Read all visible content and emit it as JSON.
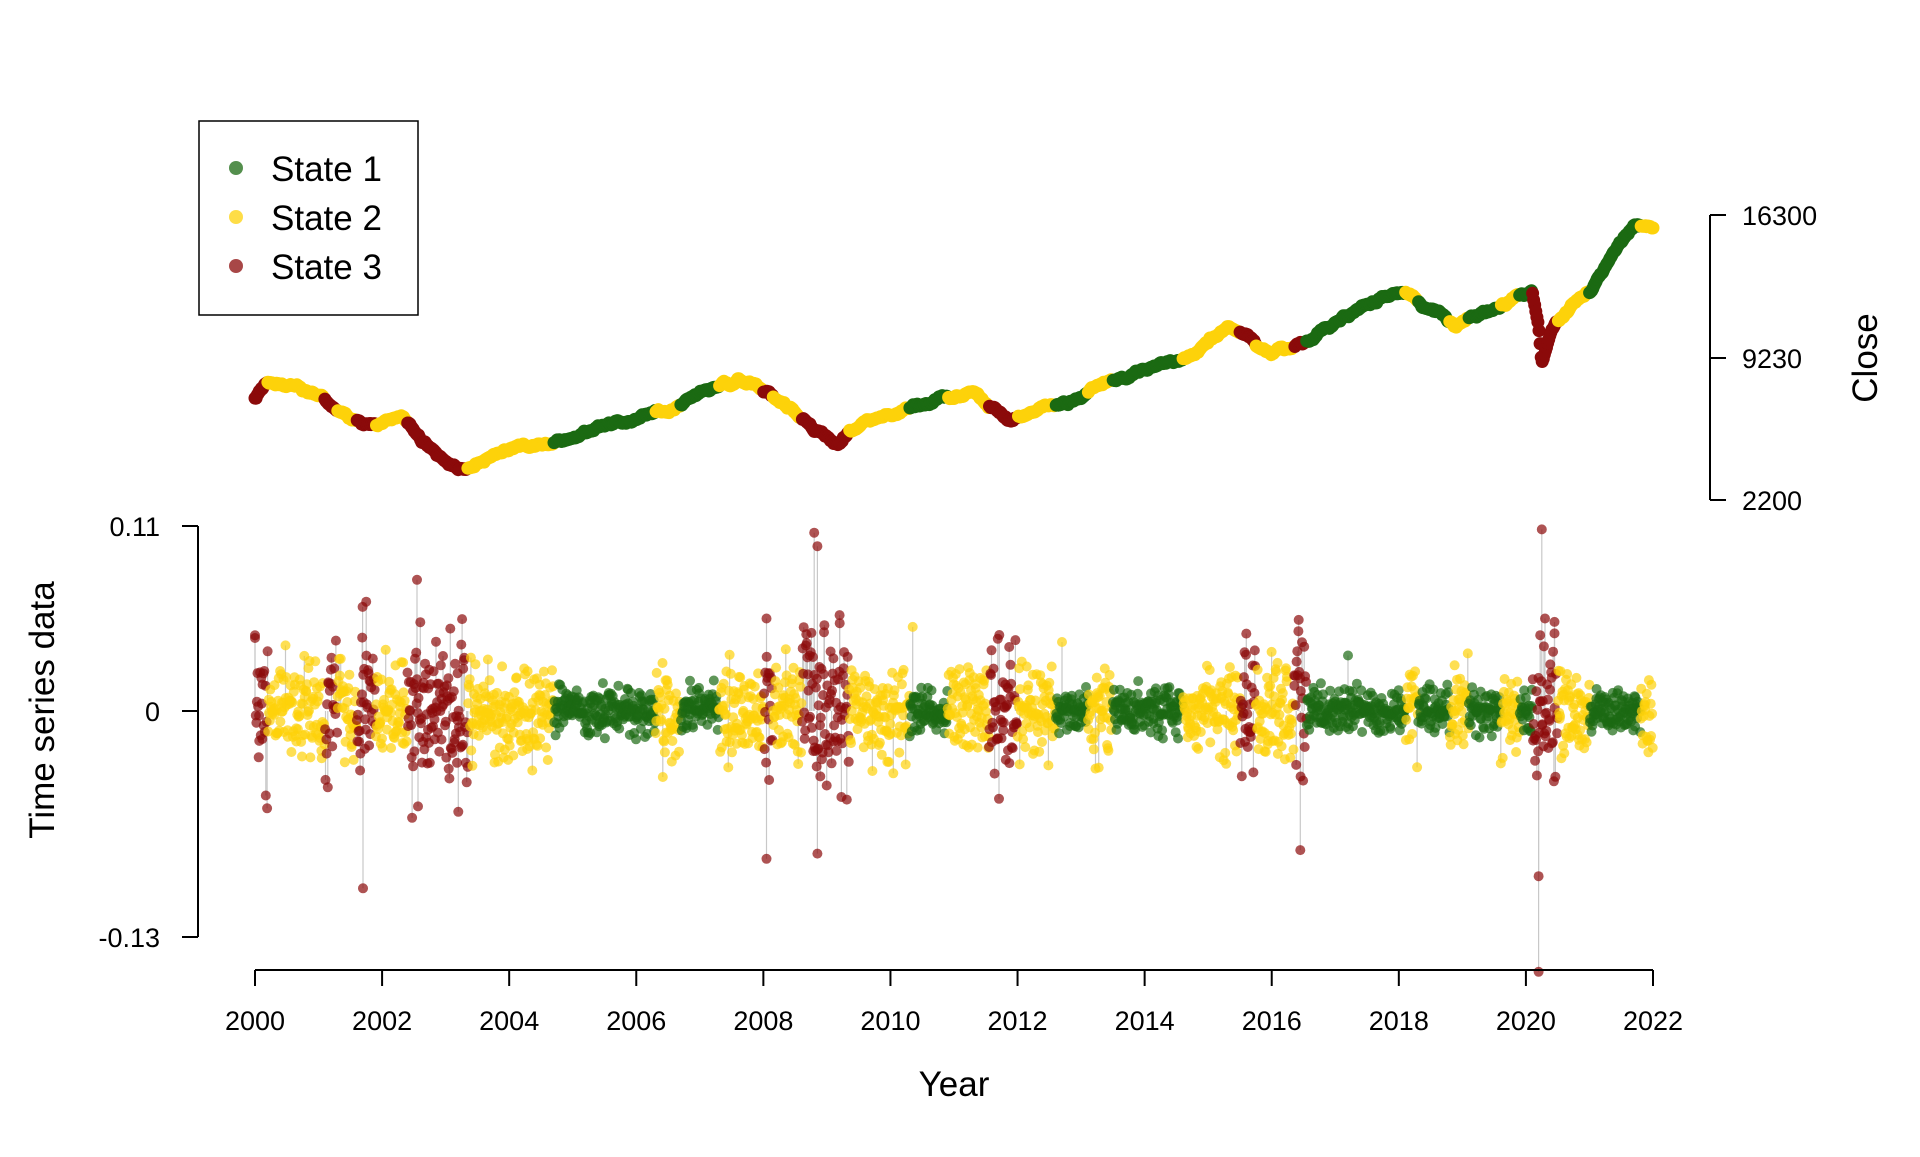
{
  "chart_data": {
    "type": "scatter",
    "title": "",
    "legend": {
      "position": "top-left",
      "entries": [
        {
          "label": "State 1",
          "color": "#1b6a12"
        },
        {
          "label": "State 2",
          "color": "#fdd20a"
        },
        {
          "label": "State 3",
          "color": "#8b0a0a"
        }
      ]
    },
    "x_axis": {
      "label": "Year",
      "range": [
        2000,
        2022
      ],
      "ticks": [
        "2000",
        "2002",
        "2004",
        "2006",
        "2008",
        "2010",
        "2012",
        "2014",
        "2016",
        "2018",
        "2020",
        "2022"
      ]
    },
    "close_axis": {
      "label": "Close",
      "position": "right",
      "range": [
        2200,
        16300
      ],
      "ticks": [
        "2200",
        "9230",
        "16300"
      ]
    },
    "returns_axis": {
      "label": "Time series data",
      "position": "left",
      "range": [
        -0.13,
        0.11
      ],
      "ticks": [
        "-0.13",
        "0",
        "0.11"
      ]
    },
    "state_segments": [
      {
        "start": 2000.0,
        "end": 2000.2,
        "state": 3
      },
      {
        "start": 2000.2,
        "end": 2001.1,
        "state": 2
      },
      {
        "start": 2001.1,
        "end": 2001.3,
        "state": 3
      },
      {
        "start": 2001.3,
        "end": 2001.6,
        "state": 2
      },
      {
        "start": 2001.6,
        "end": 2001.9,
        "state": 3
      },
      {
        "start": 2001.9,
        "end": 2002.4,
        "state": 2
      },
      {
        "start": 2002.4,
        "end": 2003.35,
        "state": 3
      },
      {
        "start": 2003.35,
        "end": 2004.7,
        "state": 2
      },
      {
        "start": 2004.7,
        "end": 2006.3,
        "state": 1
      },
      {
        "start": 2006.3,
        "end": 2006.7,
        "state": 2
      },
      {
        "start": 2006.7,
        "end": 2007.3,
        "state": 1
      },
      {
        "start": 2007.3,
        "end": 2008.0,
        "state": 2
      },
      {
        "start": 2008.0,
        "end": 2008.15,
        "state": 3
      },
      {
        "start": 2008.15,
        "end": 2008.6,
        "state": 2
      },
      {
        "start": 2008.6,
        "end": 2009.35,
        "state": 3
      },
      {
        "start": 2009.35,
        "end": 2010.3,
        "state": 2
      },
      {
        "start": 2010.3,
        "end": 2010.9,
        "state": 1
      },
      {
        "start": 2010.9,
        "end": 2011.55,
        "state": 2
      },
      {
        "start": 2011.55,
        "end": 2012.0,
        "state": 3
      },
      {
        "start": 2012.0,
        "end": 2012.6,
        "state": 2
      },
      {
        "start": 2012.6,
        "end": 2013.1,
        "state": 1
      },
      {
        "start": 2013.1,
        "end": 2013.5,
        "state": 2
      },
      {
        "start": 2013.5,
        "end": 2014.6,
        "state": 1
      },
      {
        "start": 2014.6,
        "end": 2015.5,
        "state": 2
      },
      {
        "start": 2015.5,
        "end": 2015.75,
        "state": 3
      },
      {
        "start": 2015.75,
        "end": 2016.35,
        "state": 2
      },
      {
        "start": 2016.35,
        "end": 2016.55,
        "state": 3
      },
      {
        "start": 2016.55,
        "end": 2018.1,
        "state": 1
      },
      {
        "start": 2018.1,
        "end": 2018.3,
        "state": 2
      },
      {
        "start": 2018.3,
        "end": 2018.8,
        "state": 1
      },
      {
        "start": 2018.8,
        "end": 2019.1,
        "state": 2
      },
      {
        "start": 2019.1,
        "end": 2019.6,
        "state": 1
      },
      {
        "start": 2019.6,
        "end": 2019.9,
        "state": 2
      },
      {
        "start": 2019.9,
        "end": 2020.1,
        "state": 1
      },
      {
        "start": 2020.1,
        "end": 2020.5,
        "state": 3
      },
      {
        "start": 2020.5,
        "end": 2021.0,
        "state": 2
      },
      {
        "start": 2021.0,
        "end": 2021.8,
        "state": 1
      },
      {
        "start": 2021.8,
        "end": 2022.0,
        "state": 2
      }
    ],
    "close_path": [
      [
        2000.0,
        7300
      ],
      [
        2000.2,
        8000
      ],
      [
        2000.6,
        7800
      ],
      [
        2001.0,
        7300
      ],
      [
        2001.3,
        6600
      ],
      [
        2001.7,
        5900
      ],
      [
        2002.0,
        6000
      ],
      [
        2002.3,
        6300
      ],
      [
        2002.6,
        5200
      ],
      [
        2002.9,
        4300
      ],
      [
        2003.2,
        3700
      ],
      [
        2003.5,
        4000
      ],
      [
        2004.0,
        4800
      ],
      [
        2004.7,
        4900
      ],
      [
        2005.3,
        5700
      ],
      [
        2005.8,
        6000
      ],
      [
        2006.4,
        6600
      ],
      [
        2006.9,
        7200
      ],
      [
        2007.3,
        7900
      ],
      [
        2007.6,
        8200
      ],
      [
        2007.9,
        7800
      ],
      [
        2008.3,
        7000
      ],
      [
        2008.8,
        5600
      ],
      [
        2009.2,
        5100
      ],
      [
        2009.6,
        6000
      ],
      [
        2010.3,
        6700
      ],
      [
        2010.9,
        7300
      ],
      [
        2011.3,
        7600
      ],
      [
        2011.6,
        6800
      ],
      [
        2011.9,
        6200
      ],
      [
        2012.4,
        6900
      ],
      [
        2012.8,
        7100
      ],
      [
        2013.2,
        7800
      ],
      [
        2013.8,
        8300
      ],
      [
        2014.3,
        8900
      ],
      [
        2014.8,
        9300
      ],
      [
        2015.3,
        10800
      ],
      [
        2015.7,
        10100
      ],
      [
        2016.0,
        9500
      ],
      [
        2016.5,
        9900
      ],
      [
        2017.0,
        11000
      ],
      [
        2017.5,
        11800
      ],
      [
        2017.9,
        12500
      ],
      [
        2018.2,
        12200
      ],
      [
        2018.6,
        11400
      ],
      [
        2018.9,
        10800
      ],
      [
        2019.2,
        11200
      ],
      [
        2019.6,
        11700
      ],
      [
        2019.9,
        12300
      ],
      [
        2020.1,
        12600
      ],
      [
        2020.2,
        10800
      ],
      [
        2020.25,
        9000
      ],
      [
        2020.4,
        10600
      ],
      [
        2020.7,
        11800
      ],
      [
        2021.0,
        12500
      ],
      [
        2021.4,
        14500
      ],
      [
        2021.7,
        15900
      ],
      [
        2022.0,
        15700
      ]
    ],
    "extreme_returns": [
      {
        "x": 2000.0,
        "y": 0.045,
        "state": 3
      },
      {
        "x": 2001.7,
        "y": -0.102,
        "state": 3
      },
      {
        "x": 2001.75,
        "y": 0.065,
        "state": 3
      },
      {
        "x": 2002.55,
        "y": 0.078,
        "state": 3
      },
      {
        "x": 2003.2,
        "y": -0.058,
        "state": 3
      },
      {
        "x": 2008.05,
        "y": -0.085,
        "state": 3
      },
      {
        "x": 2008.05,
        "y": 0.055,
        "state": 3
      },
      {
        "x": 2008.8,
        "y": 0.106,
        "state": 3
      },
      {
        "x": 2008.85,
        "y": 0.098,
        "state": 3
      },
      {
        "x": 2008.85,
        "y": -0.082,
        "state": 3
      },
      {
        "x": 2009.2,
        "y": 0.057,
        "state": 3
      },
      {
        "x": 2010.35,
        "y": 0.05,
        "state": 2
      },
      {
        "x": 2012.7,
        "y": 0.041,
        "state": 2
      },
      {
        "x": 2015.6,
        "y": 0.046,
        "state": 3
      },
      {
        "x": 2016.45,
        "y": -0.08,
        "state": 3
      },
      {
        "x": 2017.2,
        "y": 0.033,
        "state": 1
      },
      {
        "x": 2020.2,
        "y": -0.15,
        "state": 3
      },
      {
        "x": 2020.2,
        "y": -0.095,
        "state": 3
      },
      {
        "x": 2020.25,
        "y": 0.108,
        "state": 3
      },
      {
        "x": 2020.3,
        "y": 0.055,
        "state": 3
      },
      {
        "x": 2020.45,
        "y": 0.053,
        "state": 3
      }
    ]
  }
}
